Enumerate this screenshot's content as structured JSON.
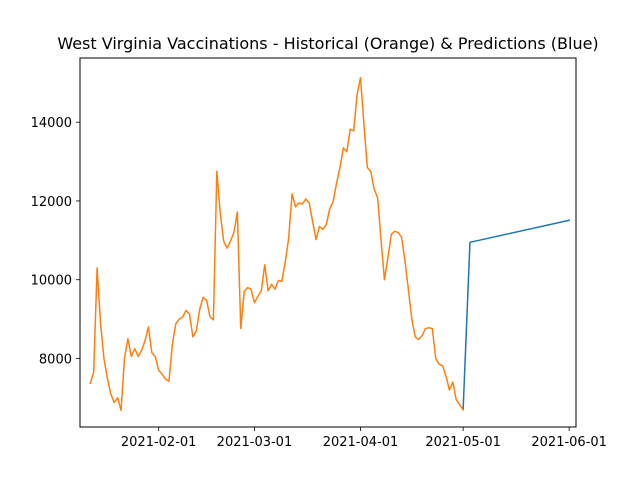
{
  "chart_data": {
    "type": "line",
    "title": "West Virginia Vaccinations - Historical (Orange) & Predictions (Blue)",
    "xlabel": "",
    "ylabel": "",
    "x_axis": "date",
    "xlim": [
      "2021-01-09",
      "2021-06-03"
    ],
    "ylim": [
      6260,
      15630
    ],
    "xticks": [
      "2021-02-01",
      "2021-03-01",
      "2021-04-01",
      "2021-05-01",
      "2021-06-01"
    ],
    "yticks": [
      8000,
      10000,
      12000,
      14000
    ],
    "grid": false,
    "legend": "none",
    "series": [
      {
        "color": "#1f77b4",
        "points": [
          [
            "2021-05-01",
            6700
          ],
          [
            "2021-05-03",
            10950
          ],
          [
            "2021-06-01",
            11510
          ]
        ]
      },
      {
        "color": "#ff7f0e",
        "points": [
          [
            "2021-01-12",
            7370
          ],
          [
            "2021-01-13",
            7650
          ],
          [
            "2021-01-14",
            10300
          ],
          [
            "2021-01-15",
            8900
          ],
          [
            "2021-01-16",
            8000
          ],
          [
            "2021-01-17",
            7500
          ],
          [
            "2021-01-18",
            7100
          ],
          [
            "2021-01-19",
            6880
          ],
          [
            "2021-01-20",
            7000
          ],
          [
            "2021-01-21",
            6680
          ],
          [
            "2021-01-22",
            8000
          ],
          [
            "2021-01-23",
            8500
          ],
          [
            "2021-01-24",
            8050
          ],
          [
            "2021-01-25",
            8250
          ],
          [
            "2021-01-26",
            8050
          ],
          [
            "2021-01-27",
            8200
          ],
          [
            "2021-01-28",
            8450
          ],
          [
            "2021-01-29",
            8800
          ],
          [
            "2021-01-30",
            8150
          ],
          [
            "2021-01-31",
            8050
          ],
          [
            "2021-02-01",
            7700
          ],
          [
            "2021-02-02",
            7600
          ],
          [
            "2021-02-03",
            7480
          ],
          [
            "2021-02-04",
            7420
          ],
          [
            "2021-02-05",
            8350
          ],
          [
            "2021-02-06",
            8880
          ],
          [
            "2021-02-07",
            9000
          ],
          [
            "2021-02-08",
            9050
          ],
          [
            "2021-02-09",
            9220
          ],
          [
            "2021-02-10",
            9130
          ],
          [
            "2021-02-11",
            8550
          ],
          [
            "2021-02-12",
            8700
          ],
          [
            "2021-02-13",
            9250
          ],
          [
            "2021-02-14",
            9550
          ],
          [
            "2021-02-15",
            9480
          ],
          [
            "2021-02-16",
            9060
          ],
          [
            "2021-02-17",
            8980
          ],
          [
            "2021-02-18",
            12750
          ],
          [
            "2021-02-19",
            11700
          ],
          [
            "2021-02-20",
            10980
          ],
          [
            "2021-02-21",
            10800
          ],
          [
            "2021-02-22",
            10980
          ],
          [
            "2021-02-23",
            11200
          ],
          [
            "2021-02-24",
            11720
          ],
          [
            "2021-02-25",
            8760
          ],
          [
            "2021-02-26",
            9700
          ],
          [
            "2021-02-27",
            9800
          ],
          [
            "2021-02-28",
            9760
          ],
          [
            "2021-03-01",
            9420
          ],
          [
            "2021-03-02",
            9580
          ],
          [
            "2021-03-03",
            9720
          ],
          [
            "2021-03-04",
            10380
          ],
          [
            "2021-03-05",
            9720
          ],
          [
            "2021-03-06",
            9880
          ],
          [
            "2021-03-07",
            9760
          ],
          [
            "2021-03-08",
            9980
          ],
          [
            "2021-03-09",
            9960
          ],
          [
            "2021-03-10",
            10450
          ],
          [
            "2021-03-11",
            11050
          ],
          [
            "2021-03-12",
            12180
          ],
          [
            "2021-03-13",
            11850
          ],
          [
            "2021-03-14",
            11950
          ],
          [
            "2021-03-15",
            11920
          ],
          [
            "2021-03-16",
            12050
          ],
          [
            "2021-03-17",
            11950
          ],
          [
            "2021-03-18",
            11480
          ],
          [
            "2021-03-19",
            11020
          ],
          [
            "2021-03-20",
            11350
          ],
          [
            "2021-03-21",
            11280
          ],
          [
            "2021-03-22",
            11400
          ],
          [
            "2021-03-23",
            11800
          ],
          [
            "2021-03-24",
            11980
          ],
          [
            "2021-03-25",
            12450
          ],
          [
            "2021-03-26",
            12850
          ],
          [
            "2021-03-27",
            13350
          ],
          [
            "2021-03-28",
            13250
          ],
          [
            "2021-03-29",
            13820
          ],
          [
            "2021-03-30",
            13780
          ],
          [
            "2021-03-31",
            14700
          ],
          [
            "2021-04-01",
            15130
          ],
          [
            "2021-04-02",
            13950
          ],
          [
            "2021-04-03",
            12850
          ],
          [
            "2021-04-04",
            12750
          ],
          [
            "2021-04-05",
            12300
          ],
          [
            "2021-04-06",
            12080
          ],
          [
            "2021-04-07",
            11020
          ],
          [
            "2021-04-08",
            10000
          ],
          [
            "2021-04-09",
            10550
          ],
          [
            "2021-04-10",
            11150
          ],
          [
            "2021-04-11",
            11230
          ],
          [
            "2021-04-12",
            11200
          ],
          [
            "2021-04-13",
            11080
          ],
          [
            "2021-04-14",
            10480
          ],
          [
            "2021-04-15",
            9750
          ],
          [
            "2021-04-16",
            9000
          ],
          [
            "2021-04-17",
            8550
          ],
          [
            "2021-04-18",
            8480
          ],
          [
            "2021-04-19",
            8580
          ],
          [
            "2021-04-20",
            8760
          ],
          [
            "2021-04-21",
            8780
          ],
          [
            "2021-04-22",
            8760
          ],
          [
            "2021-04-23",
            8000
          ],
          [
            "2021-04-24",
            7850
          ],
          [
            "2021-04-25",
            7820
          ],
          [
            "2021-04-26",
            7550
          ],
          [
            "2021-04-27",
            7200
          ],
          [
            "2021-04-28",
            7400
          ],
          [
            "2021-04-29",
            6950
          ],
          [
            "2021-04-30",
            6820
          ],
          [
            "2021-05-01",
            6700
          ]
        ]
      }
    ]
  }
}
